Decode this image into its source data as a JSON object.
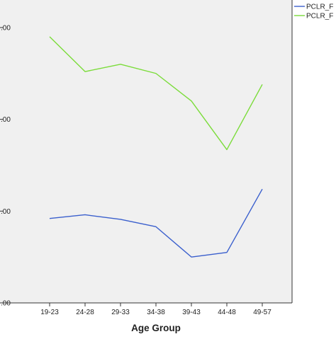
{
  "chart_data": {
    "type": "line",
    "title": "",
    "xlabel": "Age Group",
    "ylabel": "",
    "categories": [
      "19-23",
      "24-28",
      "29-33",
      "34-38",
      "39-43",
      "44-48",
      "49-57"
    ],
    "y_tick_labels": [
      ".00",
      ".00",
      ".00",
      ".00"
    ],
    "y_tick_values": [
      0,
      1,
      2,
      3
    ],
    "ylim": [
      0,
      3.3
    ],
    "grid": false,
    "legend_position": "top-right, partially cut off",
    "series": [
      {
        "name": "PCLR_F",
        "color": "#3a5fcd",
        "values": [
          0.92,
          0.96,
          0.91,
          0.83,
          0.5,
          0.55,
          1.24
        ]
      },
      {
        "name": "PCLR_F",
        "color": "#7bdc3a",
        "values": [
          2.9,
          2.52,
          2.6,
          2.5,
          2.2,
          1.67,
          2.38
        ]
      }
    ],
    "plot_background": "#f0f0f0"
  }
}
